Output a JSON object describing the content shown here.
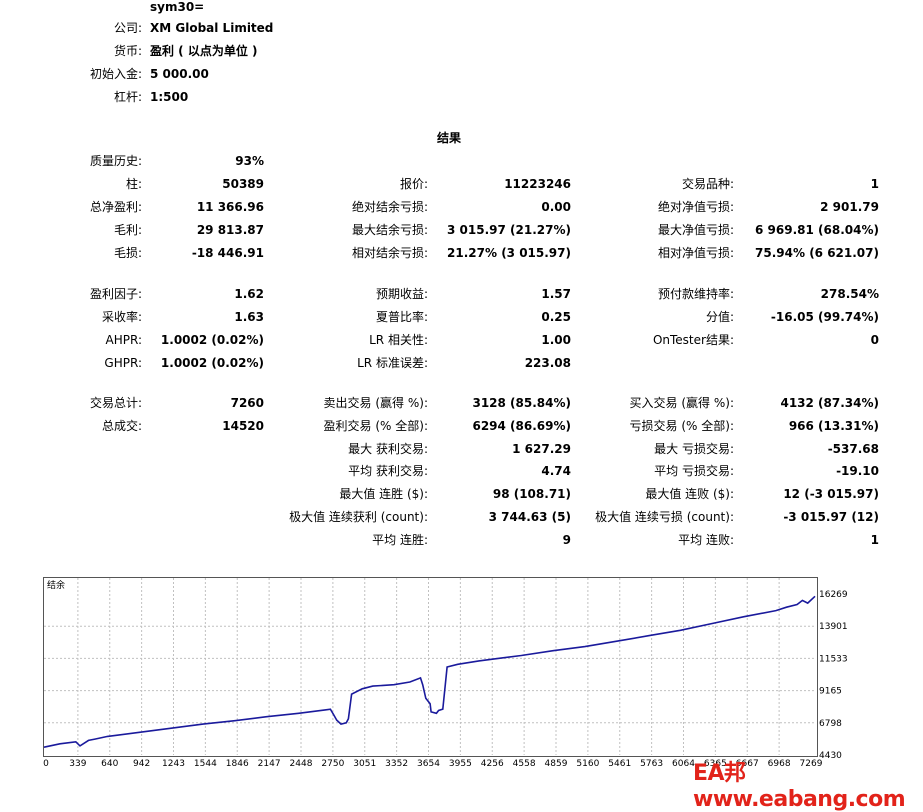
{
  "header": {
    "symbol_line": "sym30=",
    "rows": [
      {
        "label": "公司:",
        "value": "XM Global Limited"
      },
      {
        "label": "货币:",
        "value": "盈利 ( 以点为单位 )"
      },
      {
        "label": "初始入金:",
        "value": "5 000.00"
      },
      {
        "label": "杠杆:",
        "value": "1:500"
      }
    ]
  },
  "results_title": "结果",
  "stats": {
    "col1": [
      {
        "label": "质量历史:",
        "value": "93%"
      },
      {
        "label": "柱:",
        "value": "50389"
      },
      {
        "label": "总净盈利:",
        "value": "11 366.96"
      },
      {
        "label": "毛利:",
        "value": "29 813.87"
      },
      {
        "label": "毛损:",
        "value": "-18 446.91"
      },
      {
        "label": "盈利因子:",
        "value": "1.62"
      },
      {
        "label": "采收率:",
        "value": "1.63"
      },
      {
        "label": "AHPR:",
        "value": "1.0002 (0.02%)"
      },
      {
        "label": "GHPR:",
        "value": "1.0002 (0.02%)"
      },
      {
        "label": "交易总计:",
        "value": "7260"
      },
      {
        "label": "总成交:",
        "value": "14520"
      }
    ],
    "col2": [
      {
        "label": "报价:",
        "value": "11223246"
      },
      {
        "label": "绝对结余亏损:",
        "value": "0.00"
      },
      {
        "label": "最大结余亏损:",
        "value": "3 015.97 (21.27%)"
      },
      {
        "label": "相对结余亏损:",
        "value": "21.27% (3 015.97)"
      },
      {
        "label": "预期收益:",
        "value": "1.57"
      },
      {
        "label": "夏普比率:",
        "value": "0.25"
      },
      {
        "label": "LR 相关性:",
        "value": "1.00"
      },
      {
        "label": "LR 标准误差:",
        "value": "223.08"
      },
      {
        "label": "卖出交易 (赢得 %):",
        "value": "3128 (85.84%)"
      },
      {
        "label": "盈利交易 (% 全部):",
        "value": "6294 (86.69%)"
      },
      {
        "label": "最大 获利交易:",
        "value": "1 627.29"
      },
      {
        "label": "平均 获利交易:",
        "value": "4.74"
      },
      {
        "label": "最大值 连胜 ($):",
        "value": "98 (108.71)"
      },
      {
        "label": "极大值 连续获利 (count):",
        "value": "3 744.63 (5)"
      },
      {
        "label": "平均 连胜:",
        "value": "9"
      }
    ],
    "col3": [
      {
        "label": "交易品种:",
        "value": "1"
      },
      {
        "label": "绝对净值亏损:",
        "value": "2 901.79"
      },
      {
        "label": "最大净值亏损:",
        "value": "6 969.81 (68.04%)"
      },
      {
        "label": "相对净值亏损:",
        "value": "75.94% (6 621.07)"
      },
      {
        "label": "预付款维持率:",
        "value": "278.54%"
      },
      {
        "label": "分值:",
        "value": "-16.05 (99.74%)"
      },
      {
        "label": "OnTester结果:",
        "value": "0"
      },
      {
        "label": "买入交易 (赢得 %):",
        "value": "4132 (87.34%)"
      },
      {
        "label": "亏损交易 (% 全部):",
        "value": "966 (13.31%)"
      },
      {
        "label": "最大 亏损交易:",
        "value": "-537.68"
      },
      {
        "label": "平均 亏损交易:",
        "value": "-19.10"
      },
      {
        "label": "最大值 连败 ($):",
        "value": "12 (-3 015.97)"
      },
      {
        "label": "极大值 连续亏损 (count):",
        "value": "-3 015.97 (12)"
      },
      {
        "label": "平均 连败:",
        "value": "1"
      }
    ]
  },
  "chart_data": {
    "type": "line",
    "legend": "结余",
    "line_color": "#1a1a9c",
    "x_ticks": [
      "0",
      "339",
      "640",
      "942",
      "1243",
      "1544",
      "1846",
      "2147",
      "2448",
      "2750",
      "3051",
      "3352",
      "3654",
      "3955",
      "4256",
      "4558",
      "4859",
      "5160",
      "5461",
      "5763",
      "6064",
      "6365",
      "6667",
      "6968",
      "7269"
    ],
    "y_ticks": [
      "16269",
      "13901",
      "11533",
      "9165",
      "6798",
      "4430"
    ],
    "xlim": [
      0,
      7269
    ],
    "ylim": [
      4430,
      16269
    ],
    "grid": true,
    "x": [
      0,
      150,
      300,
      339,
      420,
      480,
      600,
      900,
      1200,
      1500,
      1800,
      2100,
      2400,
      2650,
      2700,
      2730,
      2760,
      2800,
      2850,
      2870,
      2900,
      3000,
      3100,
      3300,
      3450,
      3550,
      3570,
      3600,
      3640,
      3650,
      3700,
      3720,
      3760,
      3800,
      3900,
      4100,
      4300,
      4500,
      4800,
      5100,
      5400,
      5700,
      6000,
      6300,
      6600,
      6900,
      7000,
      7100,
      7150,
      7200,
      7269
    ],
    "y": [
      5000,
      5250,
      5400,
      5100,
      5500,
      5600,
      5800,
      6100,
      6400,
      6700,
      6950,
      7250,
      7500,
      7750,
      7800,
      7400,
      7000,
      6700,
      6800,
      7100,
      8900,
      9300,
      9500,
      9600,
      9800,
      10100,
      9600,
      8600,
      8200,
      7600,
      7500,
      7700,
      7800,
      10900,
      11100,
      11350,
      11550,
      11750,
      12100,
      12400,
      12800,
      13200,
      13600,
      14100,
      14600,
      15050,
      15300,
      15500,
      15800,
      15600,
      16100
    ]
  },
  "watermark": "EA邦 www.eabang.com"
}
